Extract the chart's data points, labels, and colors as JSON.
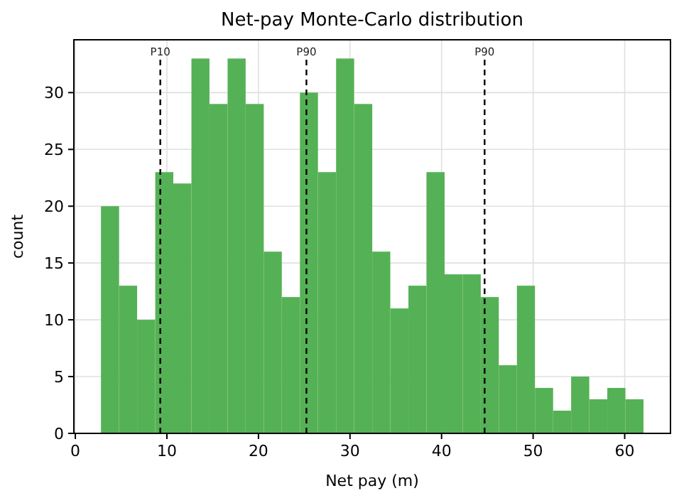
{
  "chart_data": {
    "type": "histogram",
    "title": "Net-pay Monte-Carlo distribution",
    "xlabel": "Net pay (m)",
    "ylabel": "count",
    "bins": [
      2.8,
      4.78,
      6.75,
      8.73,
      10.7,
      12.68,
      14.65,
      16.63,
      18.6,
      20.58,
      22.55,
      24.53,
      26.5,
      28.48,
      30.45,
      32.43,
      34.4,
      36.38,
      38.35,
      40.33,
      42.3,
      44.28,
      46.25,
      48.23,
      50.2,
      52.18,
      54.15,
      56.13,
      58.1,
      60.08,
      62.05
    ],
    "values": [
      20,
      13,
      10,
      23,
      22,
      33,
      29,
      33,
      29,
      16,
      12,
      30,
      23,
      33,
      29,
      16,
      11,
      13,
      23,
      14,
      14,
      12,
      6,
      13,
      4,
      2,
      5,
      3,
      4,
      3
    ],
    "color": "#55b155",
    "xlim": [
      -0.16,
      65
    ],
    "ylim": [
      0,
      34.65
    ],
    "xticks": [
      0,
      10,
      20,
      30,
      40,
      50,
      60
    ],
    "yticks": [
      0,
      5,
      10,
      15,
      20,
      25,
      30
    ],
    "grid": true,
    "ref_lines": [
      {
        "axis": "x",
        "value": 9.28,
        "label": "P10",
        "color": "#000000",
        "line_style": "dashed"
      },
      {
        "axis": "x",
        "value": 25.24,
        "label": "P90",
        "color": "#000000",
        "line_style": "dashed"
      },
      {
        "axis": "x",
        "value": 44.7,
        "label": "P90",
        "color": "#000000",
        "line_style": "dashed"
      }
    ]
  }
}
